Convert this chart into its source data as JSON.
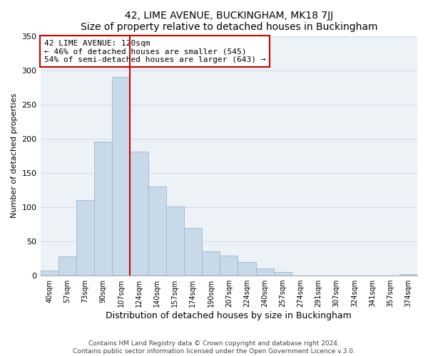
{
  "title": "42, LIME AVENUE, BUCKINGHAM, MK18 7JJ",
  "subtitle": "Size of property relative to detached houses in Buckingham",
  "xlabel": "Distribution of detached houses by size in Buckingham",
  "ylabel": "Number of detached properties",
  "bar_labels": [
    "40sqm",
    "57sqm",
    "73sqm",
    "90sqm",
    "107sqm",
    "124sqm",
    "140sqm",
    "157sqm",
    "174sqm",
    "190sqm",
    "207sqm",
    "224sqm",
    "240sqm",
    "257sqm",
    "274sqm",
    "291sqm",
    "307sqm",
    "324sqm",
    "341sqm",
    "357sqm",
    "374sqm"
  ],
  "bar_values": [
    7,
    28,
    110,
    196,
    290,
    181,
    130,
    101,
    70,
    35,
    29,
    20,
    10,
    5,
    0,
    0,
    0,
    0,
    0,
    0,
    2
  ],
  "bar_color": "#c8daea",
  "bar_edge_color": "#9ab8cc",
  "grid_color": "#d0dde8",
  "annotation_line1": "42 LIME AVENUE: 120sqm",
  "annotation_line2": "← 46% of detached houses are smaller (545)",
  "annotation_line3": "54% of semi-detached houses are larger (643) →",
  "marker_color": "#cc0000",
  "ylim": [
    0,
    350
  ],
  "yticks": [
    0,
    50,
    100,
    150,
    200,
    250,
    300,
    350
  ],
  "footer1": "Contains HM Land Registry data © Crown copyright and database right 2024.",
  "footer2": "Contains public sector information licensed under the Open Government Licence v.3.0.",
  "bg_color": "#ffffff",
  "plot_bg_color": "#edf2f7"
}
